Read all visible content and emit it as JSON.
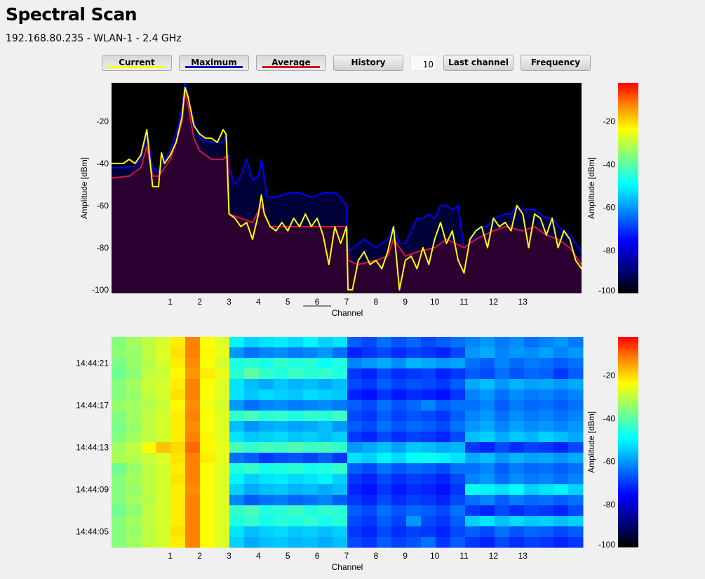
{
  "header": {
    "title": "Spectral Scan",
    "subtitle": "192.168.80.235 - WLAN-1 - 2.4 GHz"
  },
  "toolbar": {
    "current": "Current",
    "maximum": "Maximum",
    "average": "Average",
    "history": "History",
    "history_count": "10",
    "last_channel": "Last channel",
    "frequency": "Frequency"
  },
  "colors": {
    "current": "#ffff00",
    "maximum": "#0000ff",
    "average": "#e0103c",
    "plot_background": "#000000",
    "average_fill": "#2a0030",
    "maximum_fill": "#000038"
  },
  "chart_data": [
    {
      "type": "line",
      "xlabel": "Channel",
      "ylabel": "Amplitude [dBm]",
      "xlim": [
        -1,
        15
      ],
      "ylim": [
        -101.7,
        -1.7
      ],
      "xticks": [
        1,
        2,
        3,
        4,
        5,
        6,
        7,
        8,
        9,
        10,
        11,
        12,
        13
      ],
      "yticks": [
        -20,
        -40,
        -60,
        -80,
        -100
      ],
      "selected_channel": 6,
      "grid": false,
      "colorbar": {
        "label": "Amplitude [dBm]",
        "ticks": [
          -20,
          -40,
          -60,
          -80,
          -100
        ],
        "range": [
          -100,
          -2
        ],
        "colormap": "jet"
      },
      "series": [
        {
          "name": "Maximum",
          "color": "#0000ff",
          "x": [
            -1,
            -0.6,
            -0.2,
            0,
            0.2,
            0.4,
            0.6,
            0.8,
            1.0,
            1.2,
            1.4,
            1.5,
            1.6,
            1.8,
            2.0,
            2.4,
            2.8,
            2.9,
            3.0,
            3.2,
            3.4,
            3.6,
            3.8,
            4.0,
            4.1,
            4.3,
            4.6,
            5.0,
            5.4,
            5.8,
            6.2,
            6.6,
            6.8,
            7.0,
            7.05,
            7.4,
            7.6,
            8.0,
            8.4,
            8.6,
            8.8,
            9.0,
            9.2,
            9.4,
            9.6,
            9.8,
            10.0,
            10.2,
            10.4,
            10.6,
            10.8,
            11.0,
            11.2,
            11.4,
            11.6,
            11.8,
            12.0,
            12.4,
            12.6,
            12.8,
            13.0,
            13.2,
            13.4,
            13.6,
            13.8,
            14.0,
            14.2,
            14.4,
            14.6,
            14.8,
            15
          ],
          "y": [
            -42,
            -42,
            -41,
            -38,
            -26,
            -42,
            -44,
            -38,
            -34,
            -26,
            -14,
            -2,
            -8,
            -20,
            -28,
            -30,
            -30,
            -26,
            -42,
            -50,
            -46,
            -38,
            -48,
            -46,
            -38,
            -56,
            -56,
            -54,
            -54,
            -56,
            -54,
            -54,
            -56,
            -60,
            -82,
            -78,
            -76,
            -80,
            -76,
            -70,
            -78,
            -78,
            -72,
            -66,
            -66,
            -64,
            -66,
            -60,
            -60,
            -62,
            -60,
            -80,
            -78,
            -72,
            -70,
            -70,
            -66,
            -64,
            -64,
            -60,
            -62,
            -62,
            -62,
            -64,
            -66,
            -66,
            -70,
            -72,
            -74,
            -78,
            -82
          ]
        },
        {
          "name": "Average",
          "color": "#e0103c",
          "x": [
            -1,
            -0.4,
            0,
            0.2,
            0.4,
            0.6,
            0.8,
            1.0,
            1.2,
            1.4,
            1.5,
            1.6,
            1.8,
            2.0,
            2.4,
            2.8,
            2.95,
            3.0,
            3.4,
            3.8,
            4.1,
            4.4,
            5.0,
            6.0,
            7.0,
            7.05,
            7.4,
            8.0,
            8.4,
            8.6,
            9.0,
            9.4,
            10.0,
            10.4,
            11.0,
            11.4,
            12.0,
            12.4,
            13.0,
            13.4,
            13.8,
            14.2,
            14.6,
            15
          ],
          "y": [
            -47,
            -46,
            -42,
            -32,
            -46,
            -46,
            -42,
            -38,
            -30,
            -20,
            -6,
            -12,
            -28,
            -34,
            -38,
            -38,
            -36,
            -64,
            -66,
            -68,
            -60,
            -70,
            -70,
            -70,
            -70,
            -86,
            -88,
            -86,
            -84,
            -76,
            -84,
            -82,
            -80,
            -76,
            -80,
            -76,
            -72,
            -70,
            -72,
            -70,
            -74,
            -76,
            -80,
            -88
          ]
        },
        {
          "name": "Current",
          "color": "#ffff00",
          "x": [
            -1,
            -0.6,
            -0.4,
            -0.2,
            0,
            0.2,
            0.4,
            0.6,
            0.7,
            0.8,
            1.0,
            1.2,
            1.4,
            1.5,
            1.6,
            1.8,
            2.0,
            2.2,
            2.4,
            2.6,
            2.8,
            2.9,
            3.0,
            3.2,
            3.4,
            3.6,
            3.8,
            4.0,
            4.1,
            4.2,
            4.4,
            4.6,
            4.8,
            5.0,
            5.2,
            5.4,
            5.6,
            5.8,
            6.0,
            6.2,
            6.4,
            6.6,
            6.8,
            7.0,
            7.05,
            7.2,
            7.4,
            7.6,
            7.8,
            8.0,
            8.2,
            8.4,
            8.6,
            8.8,
            9.0,
            9.2,
            9.4,
            9.6,
            9.8,
            10.0,
            10.2,
            10.4,
            10.6,
            10.8,
            11.0,
            11.2,
            11.4,
            11.6,
            11.8,
            12.0,
            12.2,
            12.4,
            12.6,
            12.8,
            13.0,
            13.2,
            13.4,
            13.6,
            13.8,
            14.0,
            14.2,
            14.4,
            14.6,
            14.8,
            15
          ],
          "y": [
            -40,
            -40,
            -38,
            -40,
            -36,
            -24,
            -51,
            -51,
            -35,
            -40,
            -36,
            -30,
            -18,
            -4,
            -8,
            -22,
            -26,
            -28,
            -28,
            -30,
            -24,
            -26,
            -64,
            -66,
            -70,
            -68,
            -76,
            -64,
            -55,
            -64,
            -70,
            -72,
            -68,
            -72,
            -66,
            -70,
            -64,
            -70,
            -66,
            -74,
            -88,
            -70,
            -78,
            -70,
            -100,
            -100,
            -86,
            -82,
            -88,
            -86,
            -90,
            -82,
            -70,
            -100,
            -86,
            -84,
            -90,
            -80,
            -88,
            -76,
            -68,
            -78,
            -72,
            -86,
            -92,
            -76,
            -72,
            -70,
            -80,
            -66,
            -70,
            -68,
            -72,
            -60,
            -64,
            -80,
            -64,
            -66,
            -74,
            -66,
            -80,
            -72,
            -76,
            -86,
            -90
          ]
        }
      ]
    },
    {
      "type": "heatmap",
      "xlabel": "Channel",
      "ylabel": "",
      "xlim": [
        -1,
        15
      ],
      "xticks": [
        1,
        2,
        3,
        4,
        5,
        6,
        7,
        8,
        9,
        10,
        11,
        12,
        13
      ],
      "time_labels": [
        "14:44:21",
        "14:44:17",
        "14:44:13",
        "14:44:09",
        "14:44:05"
      ],
      "time_label_rows": [
        2,
        6,
        10,
        14,
        18
      ],
      "colorbar": {
        "label": "Amplitude [dBm]",
        "ticks": [
          -20,
          -40,
          -60,
          -80,
          -100
        ],
        "range": [
          -100,
          -2
        ],
        "colormap": "jet"
      },
      "values": [
        [
          -36,
          -33,
          -30,
          -28,
          -22,
          -12,
          -24,
          -27,
          -50,
          -54,
          -52,
          -51,
          -53,
          -50,
          -54,
          -52,
          -66,
          -68,
          -64,
          -67,
          -65,
          -68,
          -66,
          -64,
          -62,
          -60,
          -63,
          -61,
          -64,
          -62,
          -60,
          -63
        ],
        [
          -35,
          -34,
          -30,
          -27,
          -21,
          -12,
          -23,
          -26,
          -60,
          -64,
          -62,
          -61,
          -63,
          -62,
          -60,
          -64,
          -72,
          -70,
          -68,
          -71,
          -69,
          -70,
          -72,
          -68,
          -60,
          -58,
          -62,
          -60,
          -61,
          -59,
          -62,
          -60
        ],
        [
          -37,
          -34,
          -31,
          -28,
          -22,
          -13,
          -24,
          -28,
          -46,
          -45,
          -47,
          -44,
          -46,
          -45,
          -48,
          -46,
          -62,
          -60,
          -58,
          -61,
          -57,
          -58,
          -60,
          -59,
          -64,
          -66,
          -62,
          -65,
          -63,
          -64,
          -66,
          -64
        ],
        [
          -38,
          -35,
          -30,
          -29,
          -23,
          -14,
          -22,
          -26,
          -45,
          -40,
          -44,
          -46,
          -43,
          -45,
          -44,
          -46,
          -70,
          -72,
          -68,
          -71,
          -70,
          -69,
          -72,
          -70,
          -66,
          -68,
          -64,
          -67,
          -65,
          -66,
          -70,
          -66
        ],
        [
          -36,
          -33,
          -29,
          -28,
          -22,
          -12,
          -24,
          -27,
          -52,
          -56,
          -58,
          -55,
          -57,
          -56,
          -58,
          -56,
          -68,
          -70,
          -66,
          -69,
          -67,
          -68,
          -70,
          -66,
          -58,
          -56,
          -60,
          -57,
          -59,
          -58,
          -60,
          -58
        ],
        [
          -36,
          -34,
          -30,
          -28,
          -21,
          -12,
          -24,
          -27,
          -52,
          -55,
          -53,
          -54,
          -55,
          -53,
          -54,
          -55,
          -72,
          -74,
          -70,
          -73,
          -71,
          -72,
          -74,
          -70,
          -62,
          -60,
          -64,
          -61,
          -63,
          -62,
          -64,
          -62
        ],
        [
          -34,
          -33,
          -31,
          -29,
          -23,
          -13,
          -25,
          -28,
          -60,
          -64,
          -62,
          -61,
          -63,
          -62,
          -61,
          -63,
          -66,
          -68,
          -64,
          -67,
          -65,
          -62,
          -66,
          -64,
          -64,
          -62,
          -66,
          -63,
          -65,
          -64,
          -66,
          -64
        ],
        [
          -36,
          -33,
          -30,
          -28,
          -22,
          -12,
          -24,
          -27,
          -44,
          -42,
          -45,
          -44,
          -46,
          -44,
          -45,
          -43,
          -68,
          -70,
          -66,
          -69,
          -67,
          -68,
          -70,
          -66,
          -62,
          -60,
          -64,
          -61,
          -63,
          -62,
          -64,
          -62
        ],
        [
          -37,
          -34,
          -30,
          -28,
          -22,
          -13,
          -24,
          -27,
          -56,
          -60,
          -58,
          -57,
          -59,
          -58,
          -56,
          -60,
          -66,
          -68,
          -64,
          -67,
          -65,
          -66,
          -68,
          -64,
          -60,
          -58,
          -62,
          -59,
          -61,
          -60,
          -62,
          -60
        ],
        [
          -36,
          -33,
          -30,
          -28,
          -22,
          -12,
          -23,
          -27,
          -52,
          -55,
          -54,
          -53,
          -55,
          -54,
          -56,
          -54,
          -70,
          -72,
          -68,
          -71,
          -69,
          -70,
          -72,
          -68,
          -56,
          -54,
          -58,
          -55,
          -57,
          -54,
          -56,
          -58
        ],
        [
          -33,
          -30,
          -24,
          -18,
          -20,
          -10,
          -23,
          -26,
          -42,
          -44,
          -42,
          -43,
          -41,
          -43,
          -42,
          -44,
          -60,
          -58,
          -56,
          -59,
          -55,
          -56,
          -58,
          -57,
          -70,
          -72,
          -68,
          -71,
          -69,
          -70,
          -72,
          -68
        ],
        [
          -32,
          -31,
          -29,
          -27,
          -21,
          -12,
          -22,
          -26,
          -64,
          -66,
          -70,
          -68,
          -67,
          -69,
          -66,
          -70,
          -52,
          -54,
          -50,
          -53,
          -49,
          -48,
          -50,
          -52,
          -58,
          -56,
          -60,
          -57,
          -59,
          -58,
          -60,
          -58
        ],
        [
          -38,
          -34,
          -30,
          -28,
          -22,
          -12,
          -24,
          -27,
          -46,
          -44,
          -47,
          -46,
          -45,
          -47,
          -46,
          -44,
          -66,
          -68,
          -64,
          -67,
          -65,
          -66,
          -68,
          -64,
          -64,
          -62,
          -66,
          -63,
          -65,
          -64,
          -66,
          -64
        ],
        [
          -36,
          -33,
          -30,
          -28,
          -21,
          -12,
          -24,
          -27,
          -50,
          -54,
          -52,
          -51,
          -53,
          -52,
          -50,
          -54,
          -70,
          -72,
          -68,
          -71,
          -69,
          -70,
          -72,
          -68,
          -62,
          -60,
          -64,
          -61,
          -63,
          -62,
          -64,
          -62
        ],
        [
          -36,
          -34,
          -30,
          -28,
          -22,
          -13,
          -24,
          -27,
          -54,
          -58,
          -56,
          -55,
          -57,
          -56,
          -58,
          -56,
          -72,
          -74,
          -70,
          -73,
          -71,
          -72,
          -74,
          -70,
          -48,
          -50,
          -52,
          -49,
          -54,
          -52,
          -50,
          -54
        ],
        [
          -36,
          -33,
          -31,
          -28,
          -22,
          -12,
          -24,
          -27,
          -62,
          -66,
          -64,
          -63,
          -65,
          -64,
          -62,
          -66,
          -70,
          -72,
          -68,
          -71,
          -69,
          -70,
          -72,
          -68,
          -64,
          -62,
          -66,
          -63,
          -65,
          -64,
          -66,
          -64
        ],
        [
          -38,
          -35,
          -30,
          -28,
          -22,
          -12,
          -24,
          -27,
          -44,
          -42,
          -46,
          -45,
          -43,
          -46,
          -44,
          -45,
          -66,
          -68,
          -64,
          -67,
          -65,
          -66,
          -68,
          -64,
          -70,
          -72,
          -68,
          -71,
          -69,
          -70,
          -72,
          -68
        ],
        [
          -36,
          -33,
          -30,
          -28,
          -22,
          -12,
          -24,
          -27,
          -46,
          -44,
          -47,
          -45,
          -46,
          -44,
          -47,
          -45,
          -68,
          -70,
          -66,
          -69,
          -60,
          -68,
          -70,
          -66,
          -54,
          -52,
          -56,
          -53,
          -55,
          -54,
          -56,
          -54
        ],
        [
          -36,
          -34,
          -30,
          -28,
          -21,
          -12,
          -24,
          -27,
          -52,
          -56,
          -54,
          -53,
          -55,
          -54,
          -56,
          -54,
          -70,
          -72,
          -68,
          -71,
          -69,
          -70,
          -72,
          -68,
          -66,
          -68,
          -64,
          -67,
          -65,
          -66,
          -68,
          -66
        ],
        [
          -36,
          -33,
          -30,
          -28,
          -22,
          -12,
          -24,
          -27,
          -54,
          -58,
          -56,
          -55,
          -57,
          -56,
          -58,
          -56,
          -68,
          -70,
          -66,
          -69,
          -67,
          -64,
          -70,
          -66,
          -70,
          -72,
          -68,
          -71,
          -69,
          -70,
          -72,
          -70
        ]
      ]
    }
  ]
}
